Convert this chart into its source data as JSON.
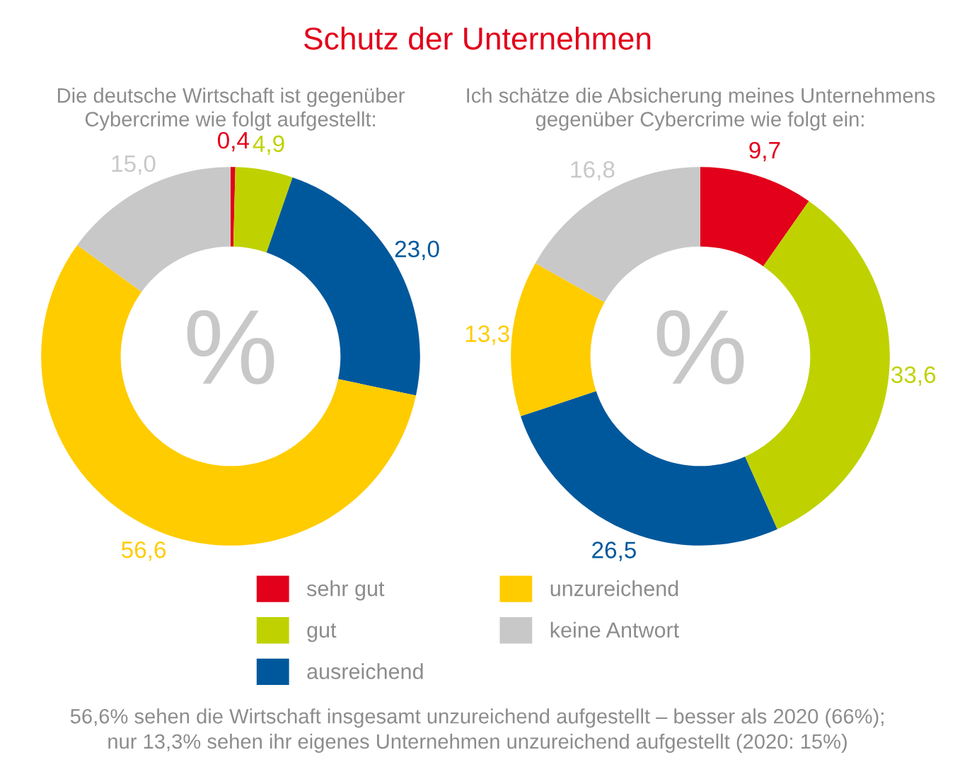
{
  "chart_data": [
    {
      "type": "donut",
      "title": "Schutz der Unternehmen",
      "subtitle": "Die deutsche Wirtschaft ist gegenüber\nCybercrime wie folgt aufgestellt:",
      "categories": [
        "sehr gut",
        "gut",
        "ausreichend",
        "unzureichend",
        "keine Antwort"
      ],
      "values": [
        0.4,
        4.9,
        23.0,
        56.6,
        15.0
      ],
      "value_labels": [
        "0,4",
        "4,9",
        "23,0",
        "56,6",
        "15,0"
      ],
      "colors": [
        "#e2001a",
        "#bfd200",
        "#00589c",
        "#ffcc00",
        "#c8c8c8"
      ],
      "annotations": [
        "%"
      ],
      "legend": "bottom"
    },
    {
      "type": "donut",
      "subtitle": "Ich schätze die Absicherung meines Unternehmens\ngegenüber Cybercrime wie folgt ein:",
      "categories": [
        null,
        null,
        null,
        null,
        null
      ],
      "values": [
        9.7,
        33.6,
        26.5,
        13.3,
        16.8
      ],
      "value_labels": [
        "9,7",
        "33,6",
        "26,5",
        "13,3",
        "16,8"
      ],
      "colors": [
        "#e2001a",
        "#bfd200",
        "#00589c",
        "#ffcc00",
        "#c8c8c8"
      ],
      "annotations": [
        "%",
        "56,6% sehen die Wirtschaft insgesamt unzureichend aufgestellt – besser als 2020 (66%);\nnur 13,3% sehen ihr eigenes Unternehmen unzureichend aufgestellt (2020: 15%)"
      ]
    }
  ]
}
